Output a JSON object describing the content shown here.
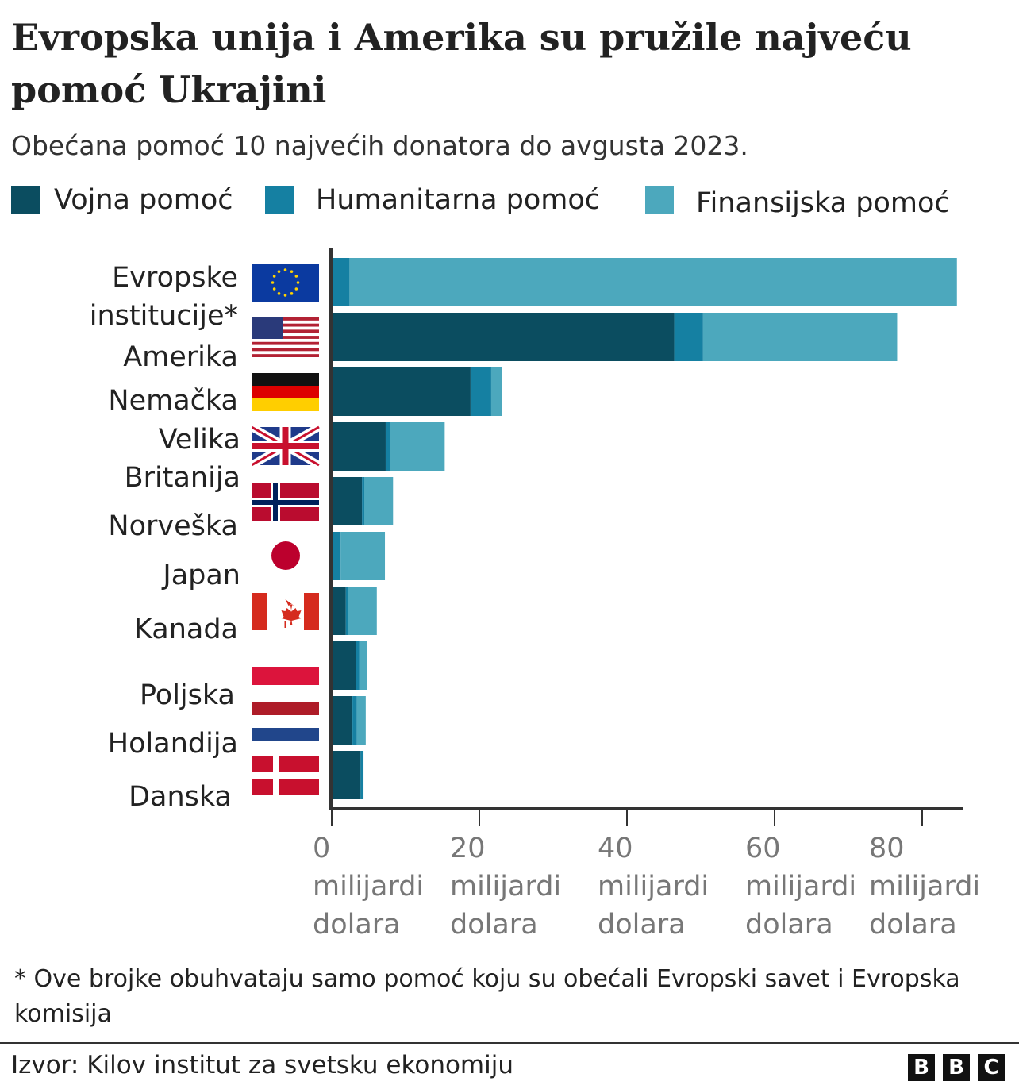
{
  "title": "Evropska unija i Amerika su pružile najveću pomoć Ukrajini",
  "subtitle": "Obećana pomoć 10 najvećih donatora do avgusta 2023.",
  "footnote": "* Ove brojke obuhvataju samo pomoć koju su obećali Evropski savet i Evropska komisija",
  "source": "Izvor: Kilov institut za svetsku ekonomiju",
  "logo": [
    "B",
    "B",
    "C"
  ],
  "colors": {
    "military": "#0b4d60",
    "humanitarian": "#1580a2",
    "financial": "#4ca8bd"
  },
  "chart_data": {
    "type": "bar",
    "orientation": "horizontal",
    "stacked": true,
    "title": "Evropska unija i Amerika su pružile najveću pomoć Ukrajini",
    "subtitle": "Obećana pomoć 10 najvećih donatora do avgusta 2023.",
    "categories": [
      "Evropske institucije*",
      "Amerika",
      "Nemačka",
      "Velika Britanija",
      "Norveška",
      "Japan",
      "Kanada",
      "Poljska",
      "Holandija",
      "Danska"
    ],
    "flags": [
      "eu-flag",
      "us-flag",
      "germany-flag",
      "uk-flag",
      "norway-flag",
      "japan-flag",
      "canada-flag",
      "poland-flag",
      "netherlands-flag",
      "denmark-flag"
    ],
    "series": [
      {
        "name": "Vojna pomoć",
        "color": "#0b4d60",
        "values": [
          0,
          46.3,
          18.7,
          7.2,
          4.0,
          0,
          1.8,
          3.2,
          2.7,
          3.8
        ]
      },
      {
        "name": "Humanitarna pomoć",
        "color": "#1580a2",
        "values": [
          2.3,
          3.9,
          2.8,
          0.6,
          0.3,
          1.1,
          0.3,
          0.4,
          0.6,
          0.3
        ]
      },
      {
        "name": "Finansijska pomoć",
        "color": "#4ca8bd",
        "values": [
          82.3,
          26.3,
          1.5,
          7.4,
          3.9,
          6.0,
          3.9,
          1.1,
          1.2,
          0.1
        ]
      }
    ],
    "xlim": [
      0,
      86
    ],
    "xticks": [
      0,
      20,
      40,
      60,
      80
    ],
    "xtick_labels": [
      [
        "0",
        "milijardi",
        "dolara"
      ],
      [
        "20",
        "milijardi",
        "dolara"
      ],
      [
        "40",
        "milijardi",
        "dolara"
      ],
      [
        "60",
        "milijardi",
        "dolara"
      ],
      [
        "80",
        "milijardi",
        "dolara"
      ]
    ],
    "legend_position": "top",
    "grid": false
  }
}
